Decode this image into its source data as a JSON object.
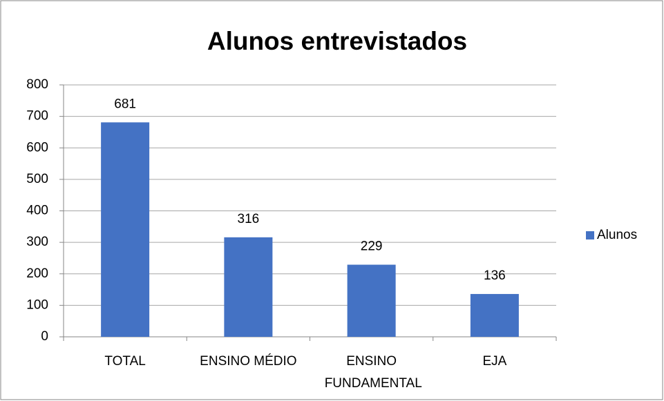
{
  "chart_data": {
    "type": "bar",
    "title": "Alunos entrevistados",
    "categories": [
      "TOTAL",
      "ENSINO MÉDIO",
      "ENSINO FUNDAMENTAL",
      "EJA"
    ],
    "series": [
      {
        "name": "Alunos",
        "color": "#4472c4",
        "values": [
          681,
          316,
          229,
          136
        ]
      }
    ],
    "ylim": [
      0,
      800
    ],
    "yticks": [
      0,
      100,
      200,
      300,
      400,
      500,
      600,
      700,
      800
    ],
    "grid": true,
    "legend": "right"
  }
}
